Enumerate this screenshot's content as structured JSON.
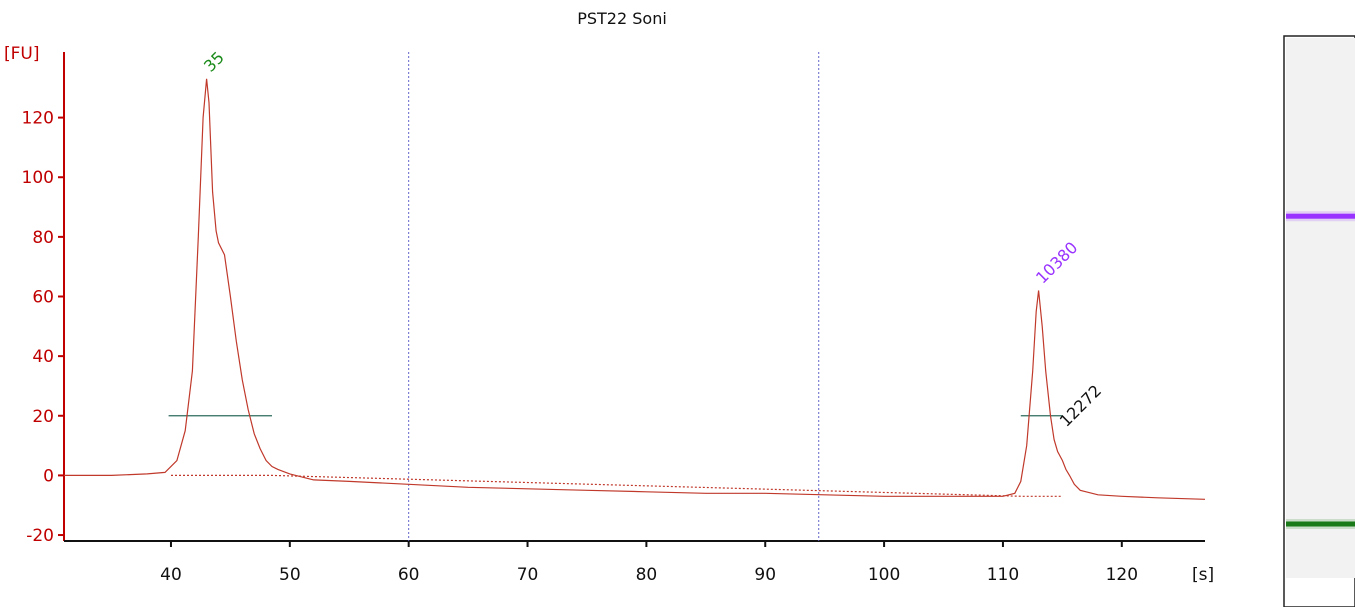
{
  "chart_data": {
    "type": "line",
    "title": "PST22 Soni",
    "xlabel": "[s]",
    "ylabel": "[FU]",
    "xlim": [
      31,
      127
    ],
    "ylim": [
      -22,
      142
    ],
    "xticks": [
      40,
      50,
      60,
      70,
      80,
      90,
      100,
      110,
      120
    ],
    "yticks": [
      -20,
      0,
      20,
      40,
      60,
      80,
      100,
      120
    ],
    "grid": false,
    "markers": [
      60,
      94.5
    ],
    "peaks": [
      {
        "label": "35",
        "x": 43.0,
        "y": 133,
        "color": "#1a8a1a"
      },
      {
        "label": "10380",
        "x": 113.0,
        "y": 62,
        "color": "#9933ff"
      },
      {
        "label": "12272",
        "x": 115.0,
        "y": 14,
        "color": "#111111"
      }
    ],
    "series": [
      {
        "color": "#c0392b",
        "x": [
          31,
          35,
          38,
          39.5,
          40.5,
          41.2,
          41.8,
          42.3,
          42.7,
          43.0,
          43.2,
          43.5,
          43.8,
          44.0,
          44.5,
          45.0,
          45.5,
          46.0,
          46.5,
          47.0,
          47.5,
          48.0,
          48.5,
          49.0,
          50.0,
          52.0,
          55.0,
          60.0,
          65.0,
          70.0,
          75.0,
          80.0,
          85.0,
          90.0,
          95.0,
          100.0,
          105.0,
          110.0,
          111.0,
          111.5,
          112.0,
          112.5,
          112.8,
          113.0,
          113.3,
          113.6,
          114.0,
          114.3,
          114.6,
          115.0,
          115.3,
          115.6,
          116.0,
          116.5,
          117.0,
          118.0,
          120.0,
          123.0,
          127.0
        ],
        "y": [
          0,
          0,
          0.5,
          1,
          5,
          15,
          35,
          80,
          120,
          133,
          125,
          95,
          82,
          78,
          74,
          60,
          45,
          32,
          22,
          14,
          9,
          5,
          3,
          2,
          0.5,
          -1.5,
          -2,
          -3,
          -4,
          -4.5,
          -5,
          -5.5,
          -6,
          -6,
          -6.5,
          -7,
          -7,
          -7,
          -6,
          -2,
          10,
          35,
          55,
          62,
          50,
          35,
          20,
          12,
          8,
          5,
          2,
          0,
          -3,
          -5,
          -5.5,
          -6.5,
          -7,
          -7.5,
          -8
        ]
      },
      {
        "color": "#c0392b",
        "x": [
          40,
          48.5,
          111.6,
          115.0
        ],
        "y": [
          0,
          0,
          -7,
          -7
        ]
      }
    ],
    "peak_bars": [
      {
        "x": [
          39.8,
          48.5
        ],
        "y": 20,
        "color": "#2e6b5e"
      },
      {
        "x": [
          111.5,
          115.0
        ],
        "y": 20,
        "color": "#2e6b5e"
      }
    ]
  },
  "gel_lane": {
    "bands": [
      {
        "position": 0.33,
        "color": "#9933ff"
      },
      {
        "position": 0.9,
        "color": "#1a7a1a"
      }
    ]
  }
}
